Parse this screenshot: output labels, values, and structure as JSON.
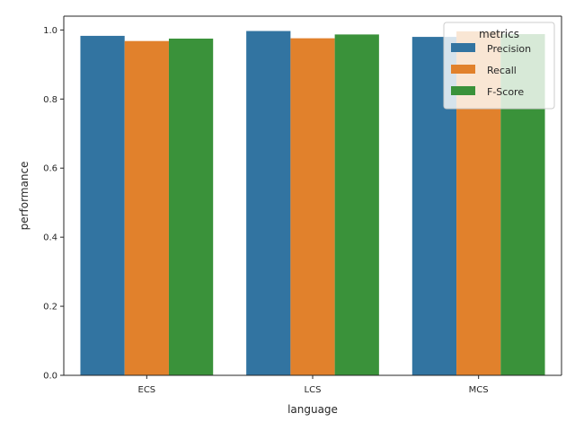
{
  "chart_data": {
    "type": "bar",
    "categories": [
      "ECS",
      "LCS",
      "MCS"
    ],
    "series": [
      {
        "name": "Precision",
        "values": [
          0.983,
          0.997,
          0.98
        ],
        "color": "#3274a1"
      },
      {
        "name": "Recall",
        "values": [
          0.968,
          0.976,
          0.996
        ],
        "color": "#e1812c"
      },
      {
        "name": "F-Score",
        "values": [
          0.975,
          0.987,
          0.988
        ],
        "color": "#3a923a"
      }
    ],
    "xlabel": "language",
    "ylabel": "performance",
    "ylim": [
      0,
      1.04
    ],
    "yticks": [
      "0.0",
      "0.2",
      "0.4",
      "0.6",
      "0.8",
      "1.0"
    ],
    "legend": {
      "title": "metrics",
      "position": "top-right"
    },
    "grid": false
  }
}
